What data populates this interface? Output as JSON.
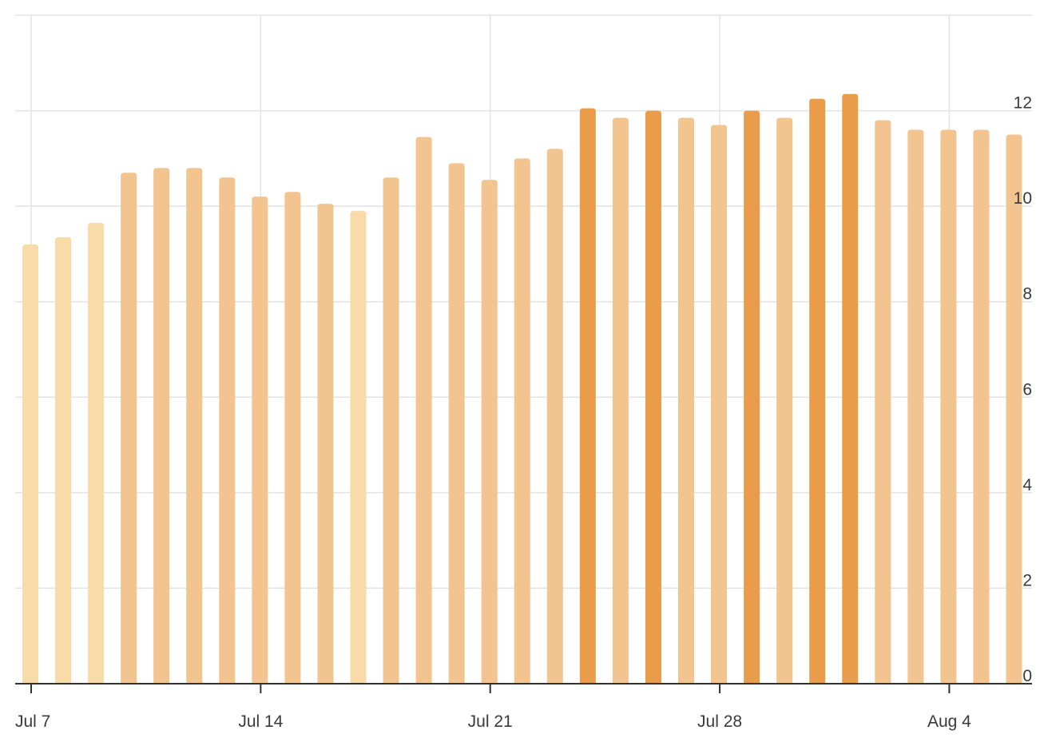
{
  "chart_data": {
    "type": "bar",
    "title": "",
    "xlabel": "",
    "ylabel": "",
    "y_axis_position": "right",
    "grid": true,
    "ylim": [
      0,
      14
    ],
    "y_ticks": [
      0,
      2,
      4,
      6,
      8,
      10,
      12
    ],
    "x_ticks": [
      {
        "label": "Jul 7",
        "date": "2024-07-07"
      },
      {
        "label": "Jul 14",
        "date": "2024-07-14"
      },
      {
        "label": "Jul 21",
        "date": "2024-07-21"
      },
      {
        "label": "Jul 28",
        "date": "2024-07-28"
      },
      {
        "label": "Aug 4",
        "date": "2024-08-04"
      }
    ],
    "categories": [
      "2024-07-07",
      "2024-07-08",
      "2024-07-09",
      "2024-07-10",
      "2024-07-11",
      "2024-07-12",
      "2024-07-13",
      "2024-07-14",
      "2024-07-15",
      "2024-07-16",
      "2024-07-17",
      "2024-07-18",
      "2024-07-19",
      "2024-07-20",
      "2024-07-21",
      "2024-07-22",
      "2024-07-23",
      "2024-07-24",
      "2024-07-25",
      "2024-07-26",
      "2024-07-27",
      "2024-07-28",
      "2024-07-29",
      "2024-07-30",
      "2024-07-31",
      "2024-08-01",
      "2024-08-02",
      "2024-08-03",
      "2024-08-04",
      "2024-08-05",
      "2024-08-06"
    ],
    "values": [
      9.2,
      9.35,
      9.65,
      10.7,
      10.8,
      10.8,
      10.6,
      10.2,
      10.3,
      10.05,
      9.9,
      10.6,
      11.45,
      10.9,
      10.55,
      11.0,
      11.2,
      12.05,
      11.85,
      12.0,
      11.85,
      11.7,
      12.0,
      11.85,
      12.25,
      12.35,
      11.8,
      11.6,
      11.6,
      11.6,
      11.5
    ],
    "color_levels": [
      1,
      1,
      1,
      2,
      2,
      2,
      2,
      2,
      2,
      2,
      1,
      2,
      2,
      2,
      2,
      2,
      2,
      3,
      2,
      3,
      2,
      2,
      3,
      2,
      3,
      3,
      2,
      2,
      2,
      2,
      2
    ],
    "colors": {
      "level_1": "#f8dba8",
      "level_2": "#f2c48f",
      "level_3": "#e99d4a",
      "grid": "#e3e3e3",
      "axis": "#333333",
      "text": "#3a3a3a"
    }
  }
}
